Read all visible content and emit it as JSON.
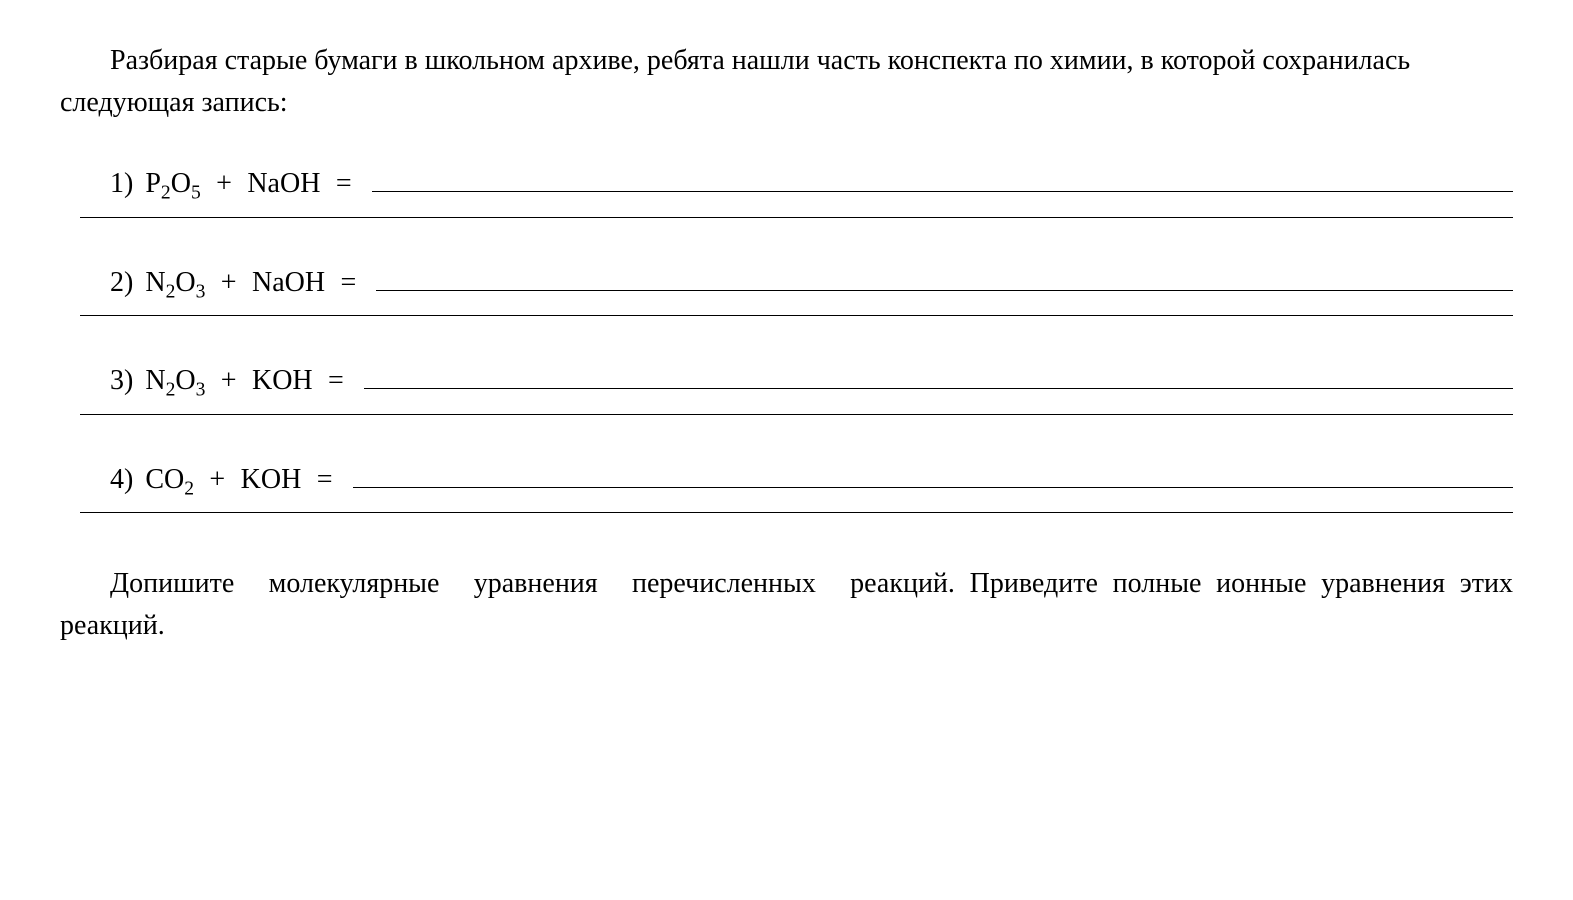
{
  "document": {
    "background_color": "#ffffff",
    "text_color": "#000000",
    "font_family": "Georgia, Times New Roman, serif",
    "base_font_size": 28
  },
  "intro": {
    "text": "Разбирая старые бумаги в школьном архиве, ребята нашли часть конспекта по химии, в которой сохранилась следующая запись:"
  },
  "equations": [
    {
      "number": "1)",
      "reagent1": "P",
      "reagent1_sub1": "2",
      "reagent1_elem2": "O",
      "reagent1_sub2": "5",
      "plus": " + ",
      "reagent2": "NaOH",
      "equals": " = "
    },
    {
      "number": "2)",
      "reagent1": "N",
      "reagent1_sub1": "2",
      "reagent1_elem2": "O",
      "reagent1_sub2": "3",
      "plus": " + ",
      "reagent2": "NaOH",
      "equals": " = "
    },
    {
      "number": "3)",
      "reagent1": "N",
      "reagent1_sub1": "2",
      "reagent1_elem2": "O",
      "reagent1_sub2": "3",
      "plus": " + ",
      "reagent2": "KOH",
      "equals": " = "
    },
    {
      "number": "4)",
      "reagent1": "CO",
      "reagent1_sub1": "2",
      "reagent1_elem2": "",
      "reagent1_sub2": "",
      "plus": " + ",
      "reagent2": "KOH",
      "equals": " = "
    }
  ],
  "outro": {
    "line1": "Допишите молекулярные уравнения перечисленных реакций.",
    "line2": "Приведите полные ионные уравнения этих реакций."
  }
}
